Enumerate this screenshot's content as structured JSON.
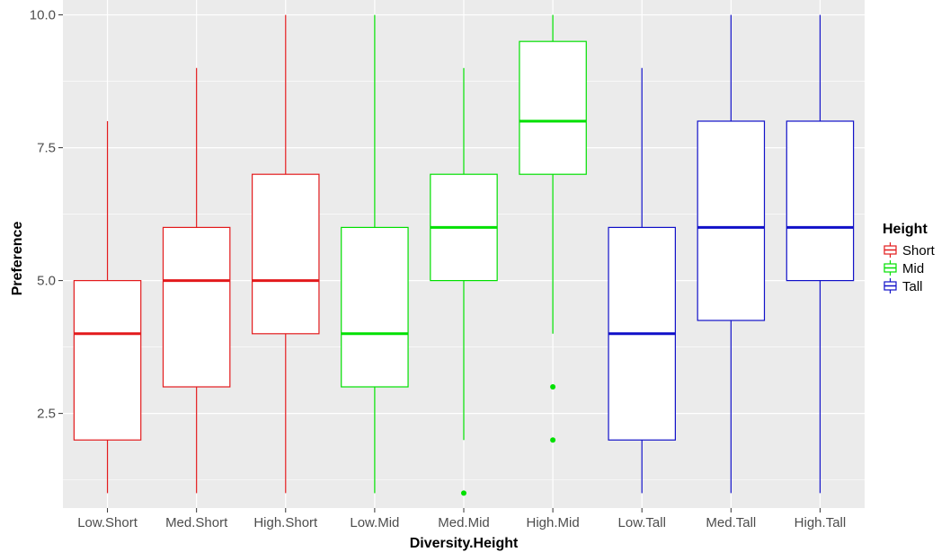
{
  "chart_data": {
    "type": "boxplot",
    "xlabel": "Diversity.Height",
    "ylabel": "Preference",
    "ylim": [
      0.72,
      10.28
    ],
    "y_ticks": [
      2.5,
      5.0,
      7.5,
      10.0
    ],
    "y_tick_labels": [
      "2.5",
      "5.0",
      "7.5",
      "10.0"
    ],
    "grid": true,
    "legend": {
      "title": "Height",
      "placement": "right",
      "entries": [
        {
          "label": "Short",
          "color": "#e31a1c"
        },
        {
          "label": "Mid",
          "color": "#00e000"
        },
        {
          "label": "Tall",
          "color": "#1010c8"
        }
      ]
    },
    "categories": [
      "Low.Short",
      "Med.Short",
      "High.Short",
      "Low.Mid",
      "Med.Mid",
      "High.Mid",
      "Low.Tall",
      "Med.Tall",
      "High.Tall"
    ],
    "boxes": [
      {
        "category": "Low.Short",
        "group": "Short",
        "whisker_low": 1,
        "q1": 2,
        "median": 4,
        "q3": 5,
        "whisker_high": 8,
        "outliers": []
      },
      {
        "category": "Med.Short",
        "group": "Short",
        "whisker_low": 1,
        "q1": 3,
        "median": 5,
        "q3": 6,
        "whisker_high": 9,
        "outliers": []
      },
      {
        "category": "High.Short",
        "group": "Short",
        "whisker_low": 1,
        "q1": 4,
        "median": 5,
        "q3": 7,
        "whisker_high": 10,
        "outliers": []
      },
      {
        "category": "Low.Mid",
        "group": "Mid",
        "whisker_low": 1,
        "q1": 3,
        "median": 4,
        "q3": 6,
        "whisker_high": 10,
        "outliers": []
      },
      {
        "category": "Med.Mid",
        "group": "Mid",
        "whisker_low": 2,
        "q1": 5,
        "median": 6,
        "q3": 7,
        "whisker_high": 9,
        "outliers": [
          1
        ]
      },
      {
        "category": "High.Mid",
        "group": "Mid",
        "whisker_low": 4,
        "q1": 7,
        "median": 8,
        "q3": 9.5,
        "whisker_high": 10,
        "outliers": [
          3,
          2
        ]
      },
      {
        "category": "Low.Tall",
        "group": "Tall",
        "whisker_low": 1,
        "q1": 2,
        "median": 4,
        "q3": 6,
        "whisker_high": 9,
        "outliers": []
      },
      {
        "category": "Med.Tall",
        "group": "Tall",
        "whisker_low": 1,
        "q1": 4.25,
        "median": 6,
        "q3": 8,
        "whisker_high": 10,
        "outliers": []
      },
      {
        "category": "High.Tall",
        "group": "Tall",
        "whisker_low": 1,
        "q1": 5,
        "median": 6,
        "q3": 8,
        "whisker_high": 10,
        "outliers": []
      }
    ]
  }
}
